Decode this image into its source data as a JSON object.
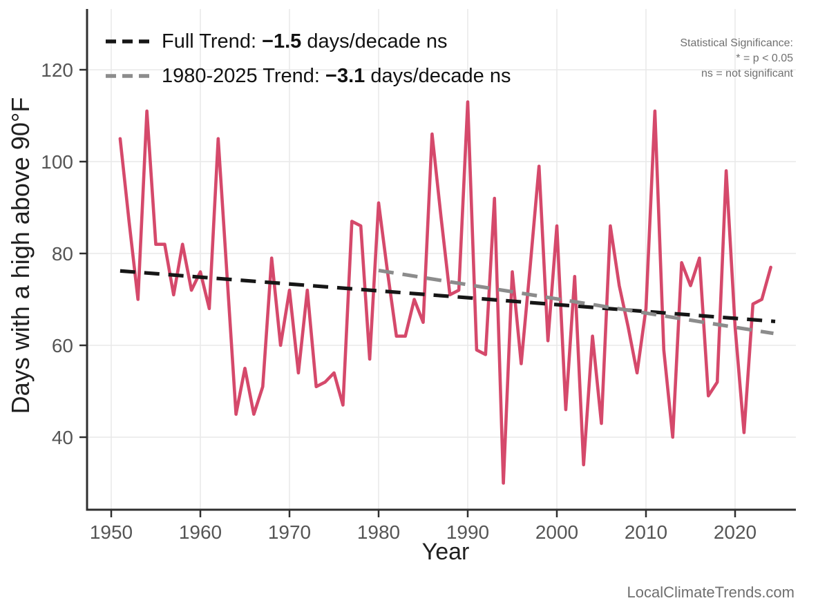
{
  "colors": {
    "background": "#ffffff",
    "grid": "#e9e9e9",
    "axis": "#2f2f2f",
    "tick_label": "#555555",
    "axis_title": "#1f1f1f",
    "observed": "#d5496b",
    "full_trend": "#161616",
    "recent_trend": "#8c8c8c",
    "note": "#707070"
  },
  "legend": {
    "rows": [
      {
        "prefix": "Full Trend: ",
        "value": "−1.5",
        "suffix": " days/decade ns",
        "color": "#161616"
      },
      {
        "prefix": "1980-2025 Trend: ",
        "value": "−3.1",
        "suffix": " days/decade ns",
        "color": "#8c8c8c"
      }
    ]
  },
  "stat_note": {
    "lines": [
      "Statistical Significance:",
      "* = p < 0.05",
      "ns = not significant"
    ]
  },
  "footer": "LocalClimateTrends.com",
  "chart_data": {
    "type": "line",
    "title": "",
    "xlabel": "Year",
    "ylabel": "Days with a high above 90°F",
    "x_ticks": [
      1950,
      1960,
      1970,
      1980,
      1990,
      2000,
      2010,
      2020
    ],
    "y_ticks": [
      40,
      60,
      80,
      100,
      120
    ],
    "xlim": [
      1947.3,
      2026.8
    ],
    "ylim": [
      24.2,
      133.2
    ],
    "grid": true,
    "legend_position": "top-left-inside",
    "years": [
      1951,
      1952,
      1953,
      1954,
      1955,
      1956,
      1957,
      1958,
      1959,
      1960,
      1961,
      1962,
      1963,
      1964,
      1965,
      1966,
      1967,
      1968,
      1969,
      1970,
      1971,
      1972,
      1973,
      1974,
      1975,
      1976,
      1977,
      1978,
      1979,
      1980,
      1981,
      1982,
      1983,
      1984,
      1985,
      1986,
      1987,
      1988,
      1989,
      1990,
      1991,
      1992,
      1993,
      1994,
      1995,
      1996,
      1997,
      1998,
      1999,
      2000,
      2001,
      2002,
      2003,
      2004,
      2005,
      2006,
      2007,
      2008,
      2009,
      2010,
      2011,
      2012,
      2013,
      2014,
      2015,
      2016,
      2017,
      2018,
      2019,
      2020,
      2021,
      2022,
      2023,
      2024
    ],
    "series": [
      {
        "name": "Days with a high above 90°F (annual)",
        "type": "line",
        "color": "#d5496b",
        "values": [
          105,
          87,
          70,
          111,
          82,
          82,
          71,
          82,
          72,
          76,
          68,
          105,
          75,
          45,
          55,
          45,
          51,
          79,
          60,
          72,
          54,
          72,
          51,
          52,
          54,
          47,
          87,
          86,
          57,
          91,
          76,
          62,
          62,
          70,
          65,
          106,
          88,
          71,
          72,
          113,
          59,
          58,
          92,
          30,
          76,
          56,
          77,
          99,
          61,
          86,
          46,
          75,
          34,
          62,
          43,
          86,
          73,
          64,
          54,
          68,
          111,
          59,
          40,
          78,
          73,
          79,
          49,
          52,
          98,
          64,
          41,
          69,
          70,
          77
        ]
      },
      {
        "name": "Full Trend",
        "type": "trend-dashed",
        "color": "#161616",
        "slope_days_per_decade": -1.5,
        "significance": "ns",
        "x": [
          1951,
          2024.5
        ],
        "y": [
          76.2,
          65.2
        ]
      },
      {
        "name": "1980-2025 Trend",
        "type": "trend-dashed",
        "color": "#8c8c8c",
        "slope_days_per_decade": -3.1,
        "significance": "ns",
        "x": [
          1980,
          2024.3
        ],
        "y": [
          76.3,
          62.6
        ]
      }
    ]
  }
}
